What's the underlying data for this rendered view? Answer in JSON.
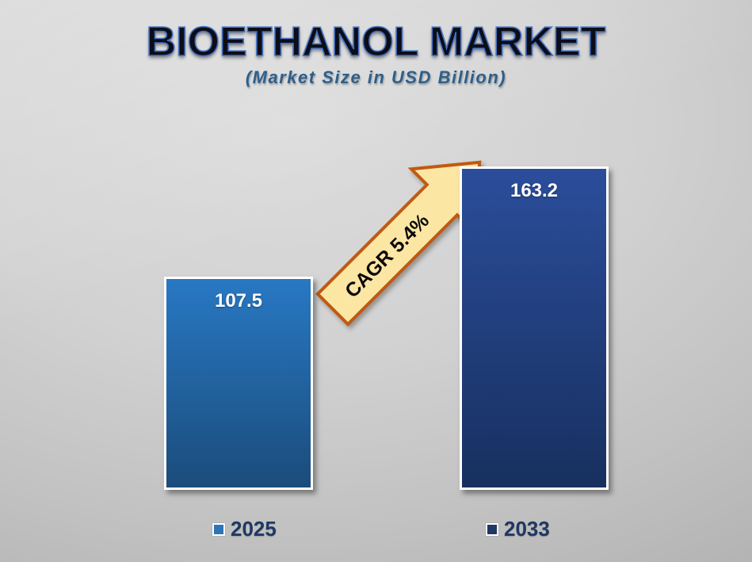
{
  "chart_data": {
    "type": "bar",
    "title": "BIOETHANOL MARKET",
    "subtitle": "(Market Size in USD Billion)",
    "categories": [
      "2025",
      "2033"
    ],
    "values": [
      107.5,
      163.2
    ],
    "annotation": "CAGR 5.4%",
    "xlabel": "",
    "ylabel": "Market Size in USD Billion",
    "ylim": [
      0,
      170
    ],
    "grid": false,
    "legend_position": "bottom",
    "bar_colors": [
      {
        "top": "#2878c3",
        "bottom": "#1b4c7b"
      },
      {
        "top": "#2b4d9b",
        "bottom": "#17305f"
      }
    ],
    "legend": [
      {
        "label": "2025",
        "color": "#2e75b6"
      },
      {
        "label": "2033",
        "color": "#1f3864"
      }
    ],
    "annotation_colors": {
      "fill": "#fce6a4",
      "stroke": "#c05a11"
    },
    "title_colors": {
      "fill": "#0c0d18",
      "outline": "#4472c4"
    },
    "subtitle_color": "#2d5f8b",
    "value_label_color": "#ffffff",
    "background_colors": {
      "center": "#d6d6d6",
      "edge": "#a8a8a8"
    }
  }
}
